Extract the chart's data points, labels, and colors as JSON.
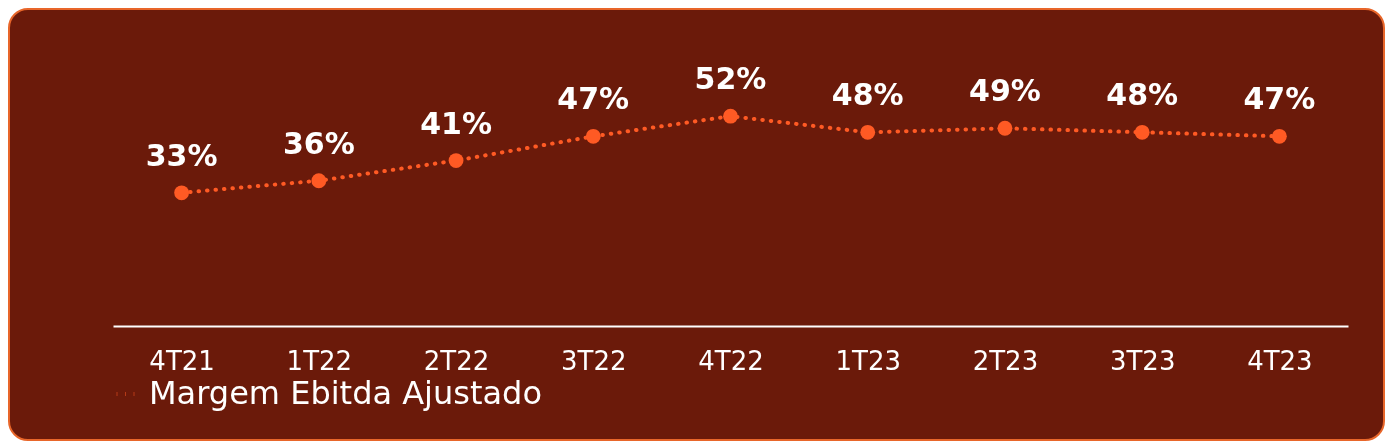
{
  "chart_data": {
    "type": "line",
    "categories": [
      "4T21",
      "1T22",
      "2T22",
      "3T22",
      "4T22",
      "1T23",
      "2T23",
      "3T23",
      "4T23"
    ],
    "series": [
      {
        "name": "Margem Ebitda Ajustado",
        "color": "#ff5a24",
        "values": [
          33,
          36,
          41,
          47,
          52,
          48,
          49,
          48,
          47
        ],
        "value_labels": [
          "33%",
          "36%",
          "41%",
          "47%",
          "52%",
          "48%",
          "49%",
          "48%",
          "47%"
        ]
      }
    ],
    "grid": false,
    "legend": "bottom",
    "marker": "circle",
    "line_style": "dotted",
    "tick_labels": "x"
  }
}
